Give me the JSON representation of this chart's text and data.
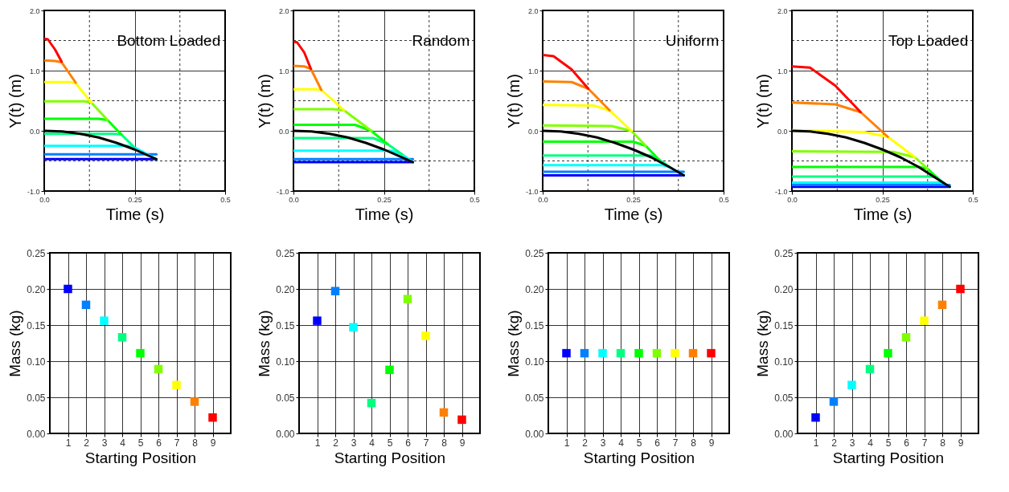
{
  "chart_data": [
    {
      "type": "line",
      "title": "Bottom Loaded",
      "xlabel": "Time (s)",
      "ylabel": "Y(t)  (m)",
      "xlim": [
        0,
        0.5
      ],
      "ylim": [
        -1,
        2
      ],
      "xticks": [
        {
          "value": 0,
          "label": "0.0"
        },
        {
          "value": 0.125,
          "label": null
        },
        0.25,
        {
          "value": 0.375,
          "label": null
        },
        0.5
      ],
      "yticks": [
        {
          "value": -1,
          "label": "-1.0"
        },
        {
          "value": -0.5,
          "label": null
        },
        {
          "value": 0,
          "label": "0.0"
        },
        {
          "value": 0.5,
          "label": null
        },
        {
          "value": 1,
          "label": "1.0"
        },
        {
          "value": 1.5,
          "label": null
        },
        {
          "value": 2,
          "label": "2.0"
        }
      ],
      "grid": true,
      "marker": "none",
      "series": [
        {
          "color": "#0000ff",
          "x": [
            0,
            0.31
          ],
          "values": [
            -0.47,
            -0.47
          ]
        },
        {
          "color": "#0080ff",
          "x": [
            0,
            0.31
          ],
          "values": [
            -0.39,
            -0.39
          ]
        },
        {
          "color": "#00ffff",
          "x": [
            0,
            0.23,
            0.245,
            0.31
          ],
          "values": [
            -0.25,
            -0.25,
            -0.26,
            -0.47
          ]
        },
        {
          "color": "#00ff80",
          "x": [
            0,
            0.19,
            0.213,
            0.245
          ],
          "values": [
            -0.05,
            -0.05,
            -0.06,
            -0.25
          ]
        },
        {
          "color": "#00ff00",
          "x": [
            0,
            0.15,
            0.175,
            0.213
          ],
          "values": [
            0.2,
            0.2,
            0.18,
            -0.06
          ]
        },
        {
          "color": "#80ff00",
          "x": [
            0,
            0.11,
            0.13,
            0.175
          ],
          "values": [
            0.49,
            0.49,
            0.47,
            0.18
          ]
        },
        {
          "color": "#ffff00",
          "x": [
            0,
            0.07,
            0.087,
            0.13
          ],
          "values": [
            0.81,
            0.81,
            0.79,
            0.47
          ]
        },
        {
          "color": "#ff8000",
          "x": [
            0,
            0.03,
            0.048,
            0.087
          ],
          "values": [
            1.17,
            1.16,
            1.14,
            0.8
          ]
        },
        {
          "color": "#ff0000",
          "x": [
            0,
            0.01,
            0.03,
            0.048
          ],
          "values": [
            1.53,
            1.52,
            1.35,
            1.15
          ]
        },
        {
          "color": "#000000",
          "x": [
            0,
            0.05,
            0.1,
            0.15,
            0.2,
            0.25,
            0.31
          ],
          "values": [
            0,
            -0.01,
            -0.05,
            -0.11,
            -0.2,
            -0.31,
            -0.47
          ]
        }
      ]
    },
    {
      "type": "line",
      "title": "Random",
      "xlabel": "Time (s)",
      "ylabel": "Y(t)  (m)",
      "xlim": [
        0,
        0.5
      ],
      "ylim": [
        -1,
        2
      ],
      "xticks": [
        {
          "value": 0,
          "label": "0.0"
        },
        {
          "value": 0.125,
          "label": null
        },
        0.25,
        {
          "value": 0.375,
          "label": null
        },
        0.5
      ],
      "yticks": [
        {
          "value": -1,
          "label": "-1.0"
        },
        {
          "value": -0.5,
          "label": null
        },
        {
          "value": 0,
          "label": "0.0"
        },
        {
          "value": 0.5,
          "label": null
        },
        {
          "value": 1,
          "label": "1.0"
        },
        {
          "value": 1.5,
          "label": null
        },
        {
          "value": 2,
          "label": "2.0"
        }
      ],
      "grid": true,
      "marker": "none",
      "series": [
        {
          "color": "#0000ff",
          "x": [
            0,
            0.33
          ],
          "values": [
            -0.52,
            -0.52
          ]
        },
        {
          "color": "#0080ff",
          "x": [
            0,
            0.33
          ],
          "values": [
            -0.47,
            -0.47
          ]
        },
        {
          "color": "#00ffff",
          "x": [
            0,
            0.27,
            0.3,
            0.33
          ],
          "values": [
            -0.33,
            -0.33,
            -0.39,
            -0.52
          ]
        },
        {
          "color": "#00ff80",
          "x": [
            0,
            0.22,
            0.26,
            0.3
          ],
          "values": [
            -0.12,
            -0.12,
            -0.22,
            -0.39
          ]
        },
        {
          "color": "#00ff00",
          "x": [
            0,
            0.17,
            0.215,
            0.26
          ],
          "values": [
            0.1,
            0.1,
            0,
            -0.22
          ]
        },
        {
          "color": "#80ff00",
          "x": [
            0,
            0.11,
            0.14,
            0.215
          ],
          "values": [
            0.36,
            0.36,
            0.34,
            0
          ]
        },
        {
          "color": "#ffff00",
          "x": [
            0,
            0.06,
            0.077,
            0.14
          ],
          "values": [
            0.69,
            0.69,
            0.68,
            0.34
          ]
        },
        {
          "color": "#ff8000",
          "x": [
            0,
            0.03,
            0.048,
            0.077
          ],
          "values": [
            1.08,
            1.07,
            1.03,
            0.68
          ]
        },
        {
          "color": "#ff0000",
          "x": [
            0,
            0.01,
            0.03,
            0.048
          ],
          "values": [
            1.48,
            1.47,
            1.3,
            1.03
          ]
        },
        {
          "color": "#000000",
          "x": [
            0,
            0.05,
            0.1,
            0.15,
            0.2,
            0.25,
            0.33
          ],
          "values": [
            0,
            -0.01,
            -0.05,
            -0.11,
            -0.2,
            -0.31,
            -0.52
          ]
        }
      ]
    },
    {
      "type": "line",
      "title": "Uniform",
      "xlabel": "Time (s)",
      "ylabel": "Y(t)  (m)",
      "xlim": [
        0,
        0.5
      ],
      "ylim": [
        -1,
        2
      ],
      "xticks": [
        {
          "value": 0,
          "label": "0.0"
        },
        {
          "value": 0.125,
          "label": null
        },
        0.25,
        {
          "value": 0.375,
          "label": null
        },
        0.5
      ],
      "yticks": [
        {
          "value": -1,
          "label": "-1.0"
        },
        {
          "value": -0.5,
          "label": null
        },
        {
          "value": 0,
          "label": "0.0"
        },
        {
          "value": 0.5,
          "label": null
        },
        {
          "value": 1,
          "label": "1.0"
        },
        {
          "value": 1.5,
          "label": null
        },
        {
          "value": 2,
          "label": "2.0"
        }
      ],
      "grid": true,
      "marker": "none",
      "series": [
        {
          "color": "#0000ff",
          "x": [
            0,
            0.39
          ],
          "values": [
            -0.74,
            -0.74
          ]
        },
        {
          "color": "#0080ff",
          "x": [
            0,
            0.39
          ],
          "values": [
            -0.68,
            -0.68
          ]
        },
        {
          "color": "#00ffff",
          "x": [
            0,
            0.33,
            0.35,
            0.39
          ],
          "values": [
            -0.57,
            -0.57,
            -0.6,
            -0.74
          ]
        },
        {
          "color": "#00ff80",
          "x": [
            0,
            0.3,
            0.32,
            0.35
          ],
          "values": [
            -0.41,
            -0.41,
            -0.47,
            -0.6
          ]
        },
        {
          "color": "#00ff00",
          "x": [
            0,
            0.25,
            0.285,
            0.32
          ],
          "values": [
            -0.18,
            -0.18,
            -0.25,
            -0.47
          ]
        },
        {
          "color": "#80ff00",
          "x": [
            0,
            0.19,
            0.245,
            0.285
          ],
          "values": [
            0.09,
            0.08,
            0,
            -0.25
          ]
        },
        {
          "color": "#ffff00",
          "x": [
            0,
            0.14,
            0.185,
            0.245
          ],
          "values": [
            0.43,
            0.42,
            0.34,
            0
          ]
        },
        {
          "color": "#ff8000",
          "x": [
            0,
            0.08,
            0.126,
            0.185
          ],
          "values": [
            0.82,
            0.81,
            0.7,
            0.34
          ]
        },
        {
          "color": "#ff0000",
          "x": [
            0,
            0.03,
            0.08,
            0.126
          ],
          "values": [
            1.26,
            1.24,
            1.02,
            0.7
          ]
        },
        {
          "color": "#000000",
          "x": [
            0,
            0.05,
            0.1,
            0.15,
            0.2,
            0.25,
            0.3,
            0.35,
            0.39
          ],
          "values": [
            0,
            -0.01,
            -0.05,
            -0.11,
            -0.2,
            -0.31,
            -0.44,
            -0.6,
            -0.74
          ]
        }
      ]
    },
    {
      "type": "line",
      "title": "Top Loaded",
      "xlabel": "Time (s)",
      "ylabel": "Y(t)  (m)",
      "xlim": [
        0,
        0.5
      ],
      "ylim": [
        -1,
        2
      ],
      "xticks": [
        {
          "value": 0,
          "label": "0.0"
        },
        {
          "value": 0.125,
          "label": null
        },
        0.25,
        {
          "value": 0.375,
          "label": null
        },
        0.5
      ],
      "yticks": [
        {
          "value": -1,
          "label": "-1.0"
        },
        {
          "value": -0.5,
          "label": null
        },
        {
          "value": 0,
          "label": "0.0"
        },
        {
          "value": 0.5,
          "label": null
        },
        {
          "value": 1,
          "label": "1.0"
        },
        {
          "value": 1.5,
          "label": null
        },
        {
          "value": 2,
          "label": "2.0"
        }
      ],
      "grid": true,
      "marker": "none",
      "series": [
        {
          "color": "#0000ff",
          "x": [
            0,
            0.436
          ],
          "values": [
            -0.93,
            -0.93
          ]
        },
        {
          "color": "#0080ff",
          "x": [
            0,
            0.436
          ],
          "values": [
            -0.9,
            -0.9
          ]
        },
        {
          "color": "#00ffff",
          "x": [
            0,
            0.41,
            0.42,
            0.436
          ],
          "values": [
            -0.86,
            -0.86,
            -0.87,
            -0.93
          ]
        },
        {
          "color": "#00ff80",
          "x": [
            0,
            0.38,
            0.4,
            0.42
          ],
          "values": [
            -0.76,
            -0.76,
            -0.77,
            -0.87
          ]
        },
        {
          "color": "#00ff00",
          "x": [
            0,
            0.35,
            0.375,
            0.4
          ],
          "values": [
            -0.6,
            -0.6,
            -0.63,
            -0.77
          ]
        },
        {
          "color": "#80ff00",
          "x": [
            0,
            0.28,
            0.34,
            0.375
          ],
          "values": [
            -0.34,
            -0.35,
            -0.44,
            -0.63
          ]
        },
        {
          "color": "#ffff00",
          "x": [
            0,
            0.2,
            0.265,
            0.34
          ],
          "values": [
            0.01,
            -0.02,
            -0.1,
            -0.44
          ]
        },
        {
          "color": "#ff8000",
          "x": [
            0,
            0.12,
            0.19,
            0.265
          ],
          "values": [
            0.47,
            0.44,
            0.31,
            -0.1
          ]
        },
        {
          "color": "#ff0000",
          "x": [
            0,
            0.05,
            0.12,
            0.19
          ],
          "values": [
            1.07,
            1.05,
            0.75,
            0.31
          ]
        },
        {
          "color": "#000000",
          "x": [
            0,
            0.05,
            0.1,
            0.15,
            0.2,
            0.25,
            0.3,
            0.35,
            0.436
          ],
          "values": [
            0,
            -0.01,
            -0.05,
            -0.11,
            -0.2,
            -0.31,
            -0.44,
            -0.6,
            -0.93
          ]
        }
      ]
    },
    {
      "type": "scatter",
      "xlabel": "Starting Position",
      "ylabel": "Mass (kg)",
      "xlim": [
        0,
        10
      ],
      "ylim": [
        0,
        0.25
      ],
      "xticks": [
        1,
        2,
        3,
        4,
        5,
        6,
        7,
        8,
        9
      ],
      "yticks": [
        {
          "value": 0,
          "label": "0.00"
        },
        {
          "value": 0.05,
          "label": "0.05"
        },
        {
          "value": 0.1,
          "label": "0.10"
        },
        {
          "value": 0.15,
          "label": "0.15"
        },
        {
          "value": 0.2,
          "label": "0.20"
        },
        {
          "value": 0.25,
          "label": "0.25"
        }
      ],
      "grid": true,
      "marker": "square",
      "x": [
        1,
        2,
        3,
        4,
        5,
        6,
        7,
        8,
        9
      ],
      "values": [
        0.2,
        0.178,
        0.156,
        0.133,
        0.111,
        0.089,
        0.067,
        0.044,
        0.022
      ],
      "colors": [
        "#0000ff",
        "#0080ff",
        "#00ffff",
        "#00ff80",
        "#00ff00",
        "#80ff00",
        "#ffff00",
        "#ff8000",
        "#ff0000"
      ]
    },
    {
      "type": "scatter",
      "xlabel": "Starting Position",
      "ylabel": "Mass (kg)",
      "xlim": [
        0,
        10
      ],
      "ylim": [
        0,
        0.25
      ],
      "xticks": [
        1,
        2,
        3,
        4,
        5,
        6,
        7,
        8,
        9
      ],
      "yticks": [
        {
          "value": 0,
          "label": "0.00"
        },
        {
          "value": 0.05,
          "label": "0.05"
        },
        {
          "value": 0.1,
          "label": "0.10"
        },
        {
          "value": 0.15,
          "label": "0.15"
        },
        {
          "value": 0.2,
          "label": "0.20"
        },
        {
          "value": 0.25,
          "label": "0.25"
        }
      ],
      "grid": true,
      "marker": "square",
      "x": [
        1,
        2,
        3,
        4,
        5,
        6,
        7,
        8,
        9
      ],
      "values": [
        0.156,
        0.197,
        0.147,
        0.042,
        0.088,
        0.186,
        0.135,
        0.029,
        0.019
      ],
      "colors": [
        "#0000ff",
        "#0080ff",
        "#00ffff",
        "#00ff80",
        "#00ff00",
        "#80ff00",
        "#ffff00",
        "#ff8000",
        "#ff0000"
      ]
    },
    {
      "type": "scatter",
      "xlabel": "Starting Position",
      "ylabel": "Mass (kg)",
      "xlim": [
        0,
        10
      ],
      "ylim": [
        0,
        0.25
      ],
      "xticks": [
        1,
        2,
        3,
        4,
        5,
        6,
        7,
        8,
        9
      ],
      "yticks": [
        {
          "value": 0,
          "label": "0.00"
        },
        {
          "value": 0.05,
          "label": "0.05"
        },
        {
          "value": 0.1,
          "label": "0.10"
        },
        {
          "value": 0.15,
          "label": "0.15"
        },
        {
          "value": 0.2,
          "label": "0.20"
        },
        {
          "value": 0.25,
          "label": "0.25"
        }
      ],
      "grid": true,
      "marker": "square",
      "x": [
        1,
        2,
        3,
        4,
        5,
        6,
        7,
        8,
        9
      ],
      "values": [
        0.111,
        0.111,
        0.111,
        0.111,
        0.111,
        0.111,
        0.111,
        0.111,
        0.111
      ],
      "colors": [
        "#0000ff",
        "#0080ff",
        "#00ffff",
        "#00ff80",
        "#00ff00",
        "#80ff00",
        "#ffff00",
        "#ff8000",
        "#ff0000"
      ]
    },
    {
      "type": "scatter",
      "xlabel": "Starting Position",
      "ylabel": "Mass (kg)",
      "xlim": [
        0,
        10
      ],
      "ylim": [
        0,
        0.25
      ],
      "xticks": [
        1,
        2,
        3,
        4,
        5,
        6,
        7,
        8,
        9
      ],
      "yticks": [
        {
          "value": 0,
          "label": "0.00"
        },
        {
          "value": 0.05,
          "label": "0.05"
        },
        {
          "value": 0.1,
          "label": "0.10"
        },
        {
          "value": 0.15,
          "label": "0.15"
        },
        {
          "value": 0.2,
          "label": "0.20"
        },
        {
          "value": 0.25,
          "label": "0.25"
        }
      ],
      "grid": true,
      "marker": "square",
      "x": [
        1,
        2,
        3,
        4,
        5,
        6,
        7,
        8,
        9
      ],
      "values": [
        0.022,
        0.044,
        0.067,
        0.089,
        0.111,
        0.133,
        0.156,
        0.178,
        0.2
      ],
      "colors": [
        "#0000ff",
        "#0080ff",
        "#00ffff",
        "#00ff80",
        "#00ff00",
        "#80ff00",
        "#ffff00",
        "#ff8000",
        "#ff0000"
      ]
    }
  ]
}
